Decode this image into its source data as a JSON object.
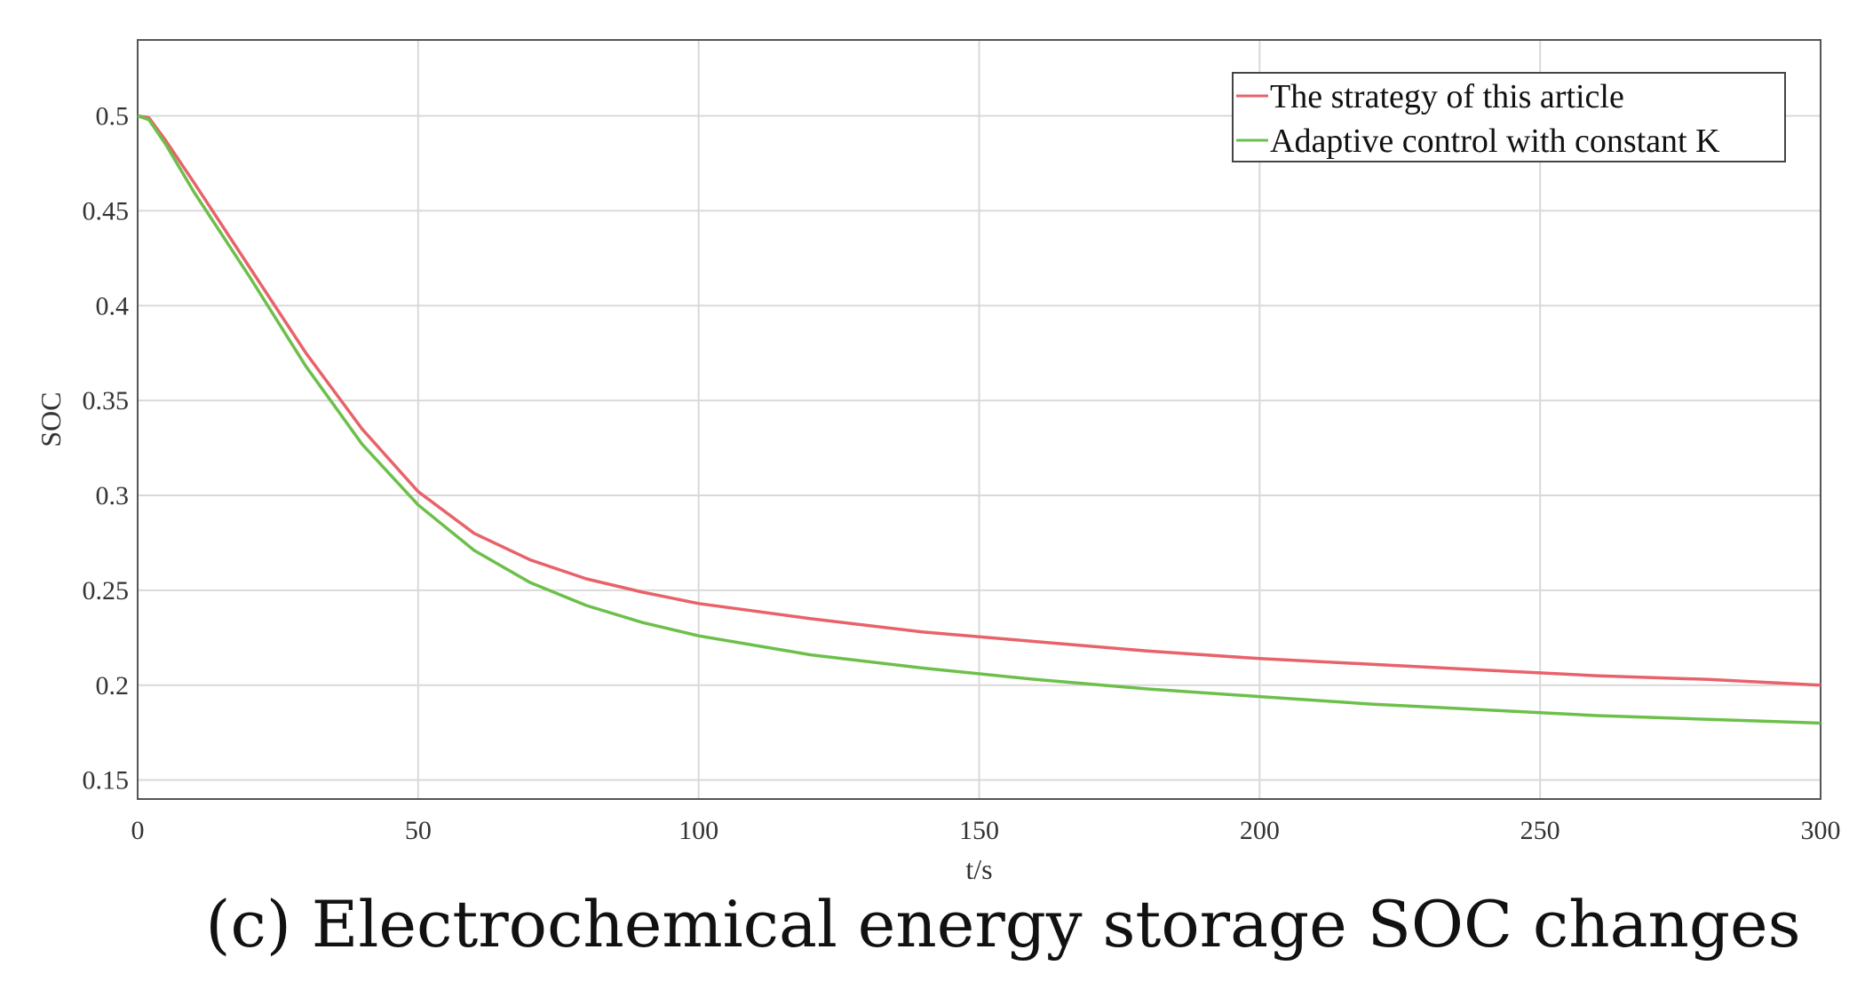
{
  "caption": "(c) Electrochemical energy storage SOC changes",
  "chart_data": {
    "type": "line",
    "xlabel": "t/s",
    "ylabel": "SOC",
    "xlim": [
      0,
      300
    ],
    "ylim": [
      0.14,
      0.54
    ],
    "xticks": [
      0,
      50,
      100,
      150,
      200,
      250,
      300
    ],
    "yticks": [
      0.15,
      0.2,
      0.25,
      0.3,
      0.35,
      0.4,
      0.45,
      0.5
    ],
    "grid": true,
    "legend_position": "top-right",
    "series": [
      {
        "name": "The strategy of this article",
        "color": "#e8626a",
        "x": [
          0,
          2,
          5,
          10,
          20,
          30,
          40,
          50,
          60,
          70,
          80,
          90,
          100,
          120,
          140,
          160,
          180,
          200,
          220,
          240,
          260,
          280,
          300
        ],
        "y": [
          0.5,
          0.499,
          0.487,
          0.465,
          0.42,
          0.375,
          0.335,
          0.302,
          0.28,
          0.266,
          0.256,
          0.249,
          0.243,
          0.235,
          0.228,
          0.223,
          0.218,
          0.214,
          0.211,
          0.208,
          0.205,
          0.203,
          0.2
        ]
      },
      {
        "name": "Adaptive control with constant K",
        "color": "#6cc04a",
        "x": [
          0,
          2,
          5,
          10,
          20,
          30,
          40,
          50,
          60,
          70,
          80,
          90,
          100,
          120,
          140,
          160,
          180,
          200,
          220,
          240,
          260,
          280,
          300
        ],
        "y": [
          0.5,
          0.498,
          0.485,
          0.46,
          0.415,
          0.368,
          0.327,
          0.295,
          0.271,
          0.254,
          0.242,
          0.233,
          0.226,
          0.216,
          0.209,
          0.203,
          0.198,
          0.194,
          0.19,
          0.187,
          0.184,
          0.182,
          0.18
        ]
      }
    ]
  }
}
